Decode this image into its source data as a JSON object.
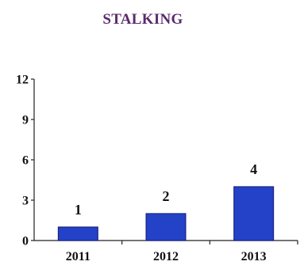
{
  "chart_data": {
    "type": "bar",
    "title": "STALKING",
    "categories": [
      "2011",
      "2012",
      "2013"
    ],
    "values": [
      1,
      2,
      4
    ],
    "data_labels": [
      "1",
      "2",
      "4"
    ],
    "ylim": [
      0,
      12
    ],
    "yticks": [
      "0",
      "3",
      "6",
      "9",
      "12"
    ],
    "xlabel": "",
    "ylabel": "",
    "grid": false,
    "legend": "none",
    "bar_color": "#2342c8"
  }
}
